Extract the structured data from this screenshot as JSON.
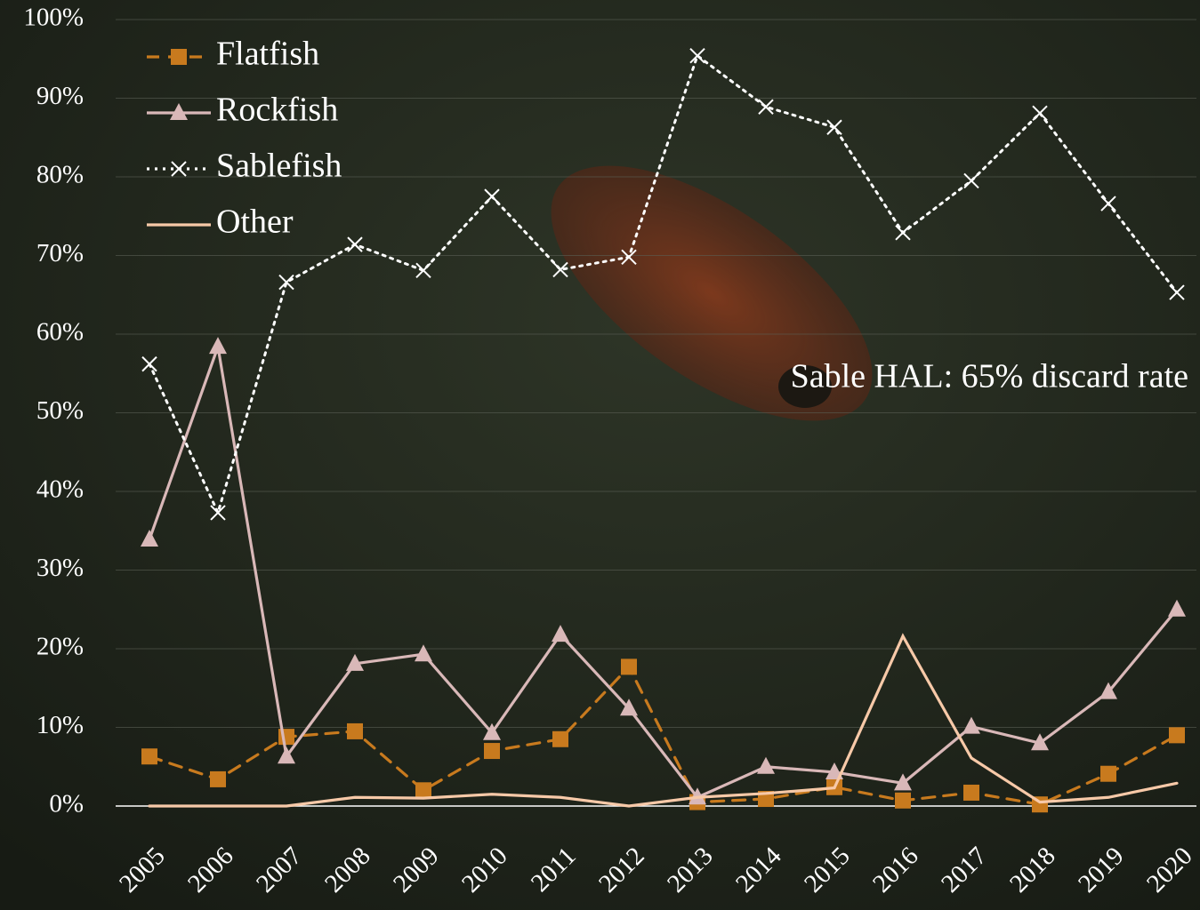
{
  "chart_data": {
    "type": "line",
    "annotation": "Sable HAL: 65% discard rate",
    "categories": [
      "2005",
      "2006",
      "2007",
      "2008",
      "2009",
      "2010",
      "2011",
      "2012",
      "2013",
      "2014",
      "2015",
      "2016",
      "2017",
      "2018",
      "2019",
      "2020"
    ],
    "series": [
      {
        "name": "Flatfish",
        "color": "#c87a1e",
        "line_style": "dashed",
        "marker": "square",
        "values": [
          6.3,
          3.4,
          8.8,
          9.5,
          2.0,
          7.0,
          8.5,
          17.7,
          0.5,
          0.9,
          2.4,
          0.7,
          1.7,
          0.2,
          4.1,
          9.0
        ]
      },
      {
        "name": "Rockfish",
        "color": "#d9b8b8",
        "line_style": "solid",
        "marker": "triangle",
        "values": [
          33.9,
          58.4,
          6.3,
          18.1,
          19.3,
          9.3,
          21.8,
          12.4,
          1.1,
          5.0,
          4.3,
          2.9,
          10.1,
          8.0,
          14.5,
          25.0
        ]
      },
      {
        "name": "Sablefish",
        "color": "#ffffff",
        "line_style": "dotted",
        "marker": "x",
        "values": [
          56.2,
          37.3,
          66.6,
          71.4,
          68.1,
          77.5,
          68.2,
          69.8,
          95.4,
          88.9,
          86.3,
          72.9,
          79.5,
          88.1,
          76.6,
          65.3
        ]
      },
      {
        "name": "Other",
        "color": "#f7c9a8",
        "line_style": "solid",
        "marker": "none",
        "values": [
          0,
          0,
          0,
          1.1,
          1.0,
          1.5,
          1.1,
          0,
          1.1,
          1.6,
          2.3,
          21.6,
          6.1,
          0.5,
          1.1,
          2.9
        ]
      }
    ],
    "ylim": [
      0,
      100
    ],
    "yticks": [
      {
        "value": 0,
        "label": "0%"
      },
      {
        "value": 10,
        "label": "10%"
      },
      {
        "value": 20,
        "label": "20%"
      },
      {
        "value": 30,
        "label": "30%"
      },
      {
        "value": 40,
        "label": "40%"
      },
      {
        "value": 50,
        "label": "50%"
      },
      {
        "value": 60,
        "label": "60%"
      },
      {
        "value": 70,
        "label": "70%"
      },
      {
        "value": 80,
        "label": "80%"
      },
      {
        "value": 90,
        "label": "90%"
      },
      {
        "value": 100,
        "label": "100%"
      }
    ],
    "grid": true,
    "legend_position": "upper-left"
  }
}
